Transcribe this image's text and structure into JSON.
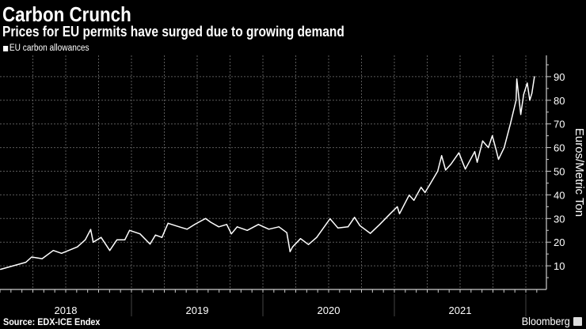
{
  "title": "Carbon Crunch",
  "subtitle": "Prices for EU permits have surged due to growing demand",
  "source": "Source: EDX-ICE Endex",
  "brand": "Bloomberg",
  "colors": {
    "background": "#000000",
    "line": "#ffffff",
    "grid": "#5a5a5a",
    "text": "#ffffff"
  },
  "chart_data": {
    "type": "line",
    "title": "Carbon Crunch",
    "subtitle": "Prices for EU permits have surged due to growing demand",
    "ylabel": "Euros/Metric Ton",
    "xlabel": "",
    "ylim": [
      0,
      95
    ],
    "yticks": [
      "10",
      "20",
      "30",
      "40",
      "50",
      "60",
      "70",
      "80",
      "90"
    ],
    "xlim": [
      "2018-01-01",
      "2022-02-05"
    ],
    "xticks": [
      "2018",
      "2019",
      "2020",
      "2021"
    ],
    "grid": true,
    "legend": "top-left",
    "y_axis_position": "right",
    "series": [
      {
        "name": "EU carbon allowances",
        "points": [
          [
            "2018-01-02",
            8.5
          ],
          [
            "2018-03-14",
            11.5
          ],
          [
            "2018-03-30",
            13.7
          ],
          [
            "2018-04-28",
            13
          ],
          [
            "2018-05-29",
            16.5
          ],
          [
            "2018-06-21",
            15.3
          ],
          [
            "2018-08-04",
            18
          ],
          [
            "2018-08-26",
            21
          ],
          [
            "2018-09-10",
            25.4
          ],
          [
            "2018-09-17",
            20
          ],
          [
            "2018-10-09",
            22
          ],
          [
            "2018-11-02",
            16.5
          ],
          [
            "2018-11-22",
            21
          ],
          [
            "2018-12-14",
            21
          ],
          [
            "2018-12-27",
            25
          ],
          [
            "2019-01-25",
            23.5
          ],
          [
            "2019-02-22",
            19.2
          ],
          [
            "2019-03-09",
            23
          ],
          [
            "2019-03-27",
            22
          ],
          [
            "2019-04-13",
            28
          ],
          [
            "2019-05-14",
            26.5
          ],
          [
            "2019-06-05",
            25.5
          ],
          [
            "2019-06-27",
            27.6
          ],
          [
            "2019-07-26",
            30
          ],
          [
            "2019-08-10",
            28.4
          ],
          [
            "2019-09-01",
            26.5
          ],
          [
            "2019-09-23",
            27.5
          ],
          [
            "2019-10-06",
            23.5
          ],
          [
            "2019-10-22",
            26.5
          ],
          [
            "2019-11-19",
            25
          ],
          [
            "2019-12-20",
            27.5
          ],
          [
            "2020-01-18",
            25.5
          ],
          [
            "2020-02-15",
            26.5
          ],
          [
            "2020-03-08",
            24
          ],
          [
            "2020-03-17",
            16
          ],
          [
            "2020-03-24",
            18
          ],
          [
            "2020-04-15",
            21.5
          ],
          [
            "2020-05-07",
            19
          ],
          [
            "2020-05-30",
            22
          ],
          [
            "2020-07-06",
            29.9
          ],
          [
            "2020-07-28",
            26
          ],
          [
            "2020-08-25",
            26.5
          ],
          [
            "2020-09-12",
            30.5
          ],
          [
            "2020-09-27",
            27
          ],
          [
            "2020-10-26",
            23.7
          ],
          [
            "2020-11-21",
            27.5
          ],
          [
            "2020-12-20",
            32
          ],
          [
            "2021-01-09",
            35
          ],
          [
            "2021-01-15",
            32
          ],
          [
            "2021-02-11",
            39.9
          ],
          [
            "2021-02-24",
            37.7
          ],
          [
            "2021-03-16",
            43.2
          ],
          [
            "2021-03-27",
            41
          ],
          [
            "2021-04-09",
            44.3
          ],
          [
            "2021-05-01",
            50
          ],
          [
            "2021-05-12",
            56.6
          ],
          [
            "2021-05-23",
            50.5
          ],
          [
            "2021-06-07",
            53
          ],
          [
            "2021-06-29",
            57.8
          ],
          [
            "2021-07-17",
            50.9
          ],
          [
            "2021-08-12",
            58.3
          ],
          [
            "2021-08-19",
            53.8
          ],
          [
            "2021-09-03",
            62.8
          ],
          [
            "2021-09-19",
            60
          ],
          [
            "2021-09-30",
            65
          ],
          [
            "2021-10-11",
            58.8
          ],
          [
            "2021-10-17",
            55
          ],
          [
            "2021-11-02",
            60
          ],
          [
            "2021-11-19",
            70
          ],
          [
            "2021-12-05",
            80
          ],
          [
            "2021-12-07",
            89
          ],
          [
            "2021-12-18",
            74
          ],
          [
            "2021-12-26",
            82.5
          ],
          [
            "2022-01-05",
            87.3
          ],
          [
            "2022-01-12",
            80
          ],
          [
            "2022-01-18",
            83
          ],
          [
            "2022-01-25",
            90
          ]
        ]
      }
    ]
  }
}
